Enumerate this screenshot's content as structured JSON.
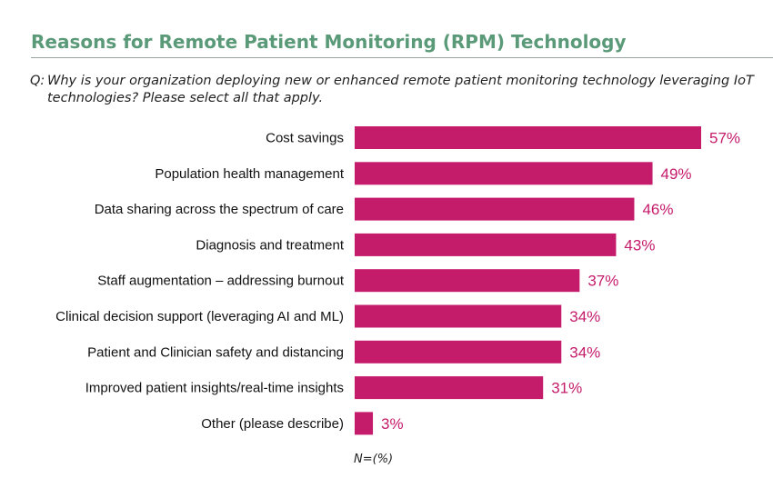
{
  "header": {
    "title": "Reasons for Remote Patient Monitoring (RPM) Technology",
    "question_prefix": "Q:",
    "question": "Why is your organization deploying new or enhanced remote patient monitoring technology leveraging IoT technologies? Please select all that apply."
  },
  "colors": {
    "bar": "#c51b6b",
    "title": "#5b9a78"
  },
  "chart_data": {
    "type": "bar",
    "orientation": "horizontal",
    "categories": [
      "Cost savings",
      "Population health management",
      "Data sharing across the spectrum of care",
      "Diagnosis and treatment",
      "Staff augmentation – addressing burnout",
      "Clinical decision support (leveraging AI and ML)",
      "Patient and Clinician safety and distancing",
      "Improved patient insights/real-time insights",
      "Other (please describe)"
    ],
    "values": [
      57,
      49,
      46,
      43,
      37,
      34,
      34,
      31,
      3
    ],
    "value_labels": [
      "57%",
      "49%",
      "46%",
      "43%",
      "37%",
      "34%",
      "34%",
      "31%",
      "3%"
    ],
    "xlim": [
      0,
      57
    ],
    "grid": false,
    "note": "N=(%)"
  }
}
